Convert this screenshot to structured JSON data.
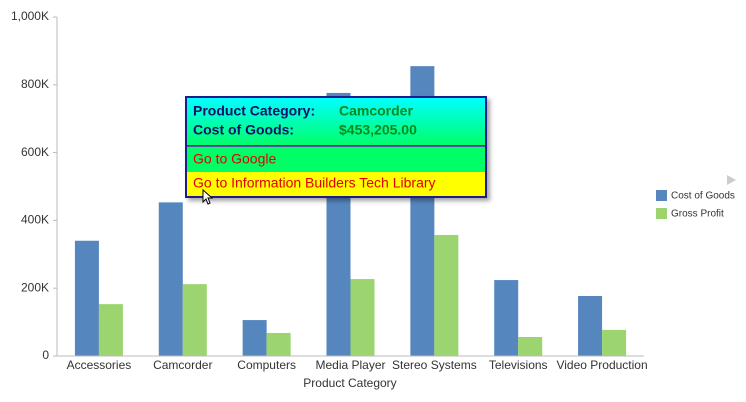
{
  "chart_data": {
    "type": "bar",
    "x_label": "Product Category",
    "categories": [
      "Accessories",
      "Camcorder",
      "Computers",
      "Media Player",
      "Stereo Systems",
      "Televisions",
      "Video Production"
    ],
    "series": [
      {
        "name": "Cost of Goods",
        "color": "#5586be",
        "values": [
          340000,
          453205,
          106000,
          776000,
          855000,
          224000,
          177000
        ]
      },
      {
        "name": "Gross Profit",
        "color": "#9cd470",
        "values": [
          153000,
          212000,
          68000,
          227000,
          357000,
          56000,
          77000
        ]
      }
    ],
    "ylim": [
      0,
      1000000
    ],
    "yticks": [
      0,
      {
        "value": 200000,
        "label": "200K"
      },
      {
        "value": 400000,
        "label": "400K"
      },
      {
        "value": 600000,
        "label": "600K"
      },
      {
        "value": 800000,
        "label": "800K"
      },
      {
        "value": 1000000,
        "label": "1,000K"
      }
    ],
    "grid": false,
    "legend": "right",
    "tooltip": {
      "rows": [
        {
          "label": "Product Category:",
          "value": "Camcorder"
        },
        {
          "label": "Cost of Goods:",
          "value": "$453,205.00"
        }
      ],
      "links": [
        "Go to Google",
        "Go to Information Builders Tech Library"
      ]
    }
  }
}
